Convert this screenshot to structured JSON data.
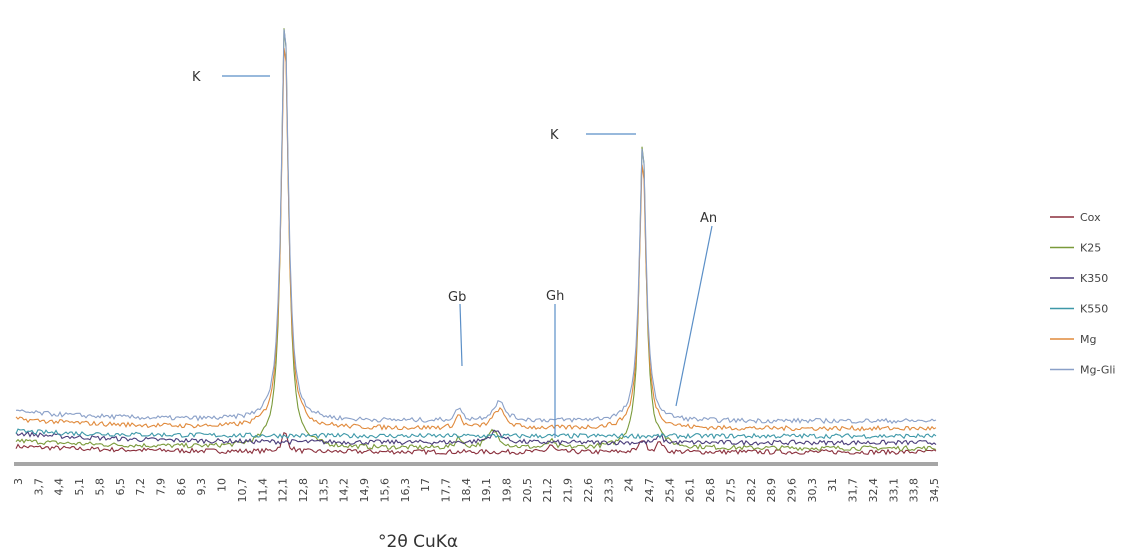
{
  "chart_data": {
    "type": "line",
    "title": "",
    "xlabel": "°2θ  CuKα",
    "ylabel": "",
    "grid": false,
    "legend_position": "right",
    "xlim": [
      3,
      35
    ],
    "x_tick_labels": [
      "3",
      "3,7",
      "4,4",
      "5,1",
      "5,8",
      "6,5",
      "7,2",
      "7,9",
      "8,6",
      "9,3",
      "10",
      "10,7",
      "11,4",
      "12,1",
      "12,8",
      "13,5",
      "14,2",
      "14,9",
      "15,6",
      "16,3",
      "17",
      "17,7",
      "18,4",
      "19,1",
      "19,8",
      "20,5",
      "21,2",
      "21,9",
      "22,6",
      "23,3",
      "24",
      "24,7",
      "25,4",
      "26,1",
      "26,8",
      "27,5",
      "28,2",
      "28,9",
      "29,6",
      "30,3",
      "31",
      "31,7",
      "32,4",
      "33,1",
      "33,8",
      "34,5"
    ],
    "series": [
      {
        "name": "Cox",
        "color": "#8b2f3c",
        "baseline": 0.0,
        "tail": 0.06,
        "peaks": [
          [
            12.35,
            0.2,
            0.12
          ],
          [
            21.6,
            0.08,
            0.1
          ],
          [
            24.8,
            0.14,
            0.12
          ],
          [
            25.4,
            0.12,
            0.1
          ]
        ]
      },
      {
        "name": "K25",
        "color": "#7a9a3a",
        "baseline": 0.04,
        "tail": 0.08,
        "peaks": [
          [
            12.35,
            4.6,
            0.15
          ],
          [
            18.4,
            0.12,
            0.1
          ],
          [
            19.6,
            0.18,
            0.25
          ],
          [
            21.6,
            0.08,
            0.1
          ],
          [
            24.8,
            3.3,
            0.14
          ],
          [
            25.4,
            0.06,
            0.1
          ]
        ]
      },
      {
        "name": "K350",
        "color": "#4a3c7a",
        "baseline": 0.1,
        "tail": 0.1,
        "peaks": [
          [
            19.7,
            0.12,
            0.25
          ],
          [
            25.4,
            0.08,
            0.1
          ]
        ]
      },
      {
        "name": "K550",
        "color": "#3d98a8",
        "baseline": 0.17,
        "tail": 0.05,
        "peaks": []
      },
      {
        "name": "Mg",
        "color": "#e08a3c",
        "baseline": 0.25,
        "tail": 0.1,
        "peaks": [
          [
            12.35,
            4.2,
            0.15
          ],
          [
            18.4,
            0.14,
            0.12
          ],
          [
            19.8,
            0.2,
            0.25
          ],
          [
            24.8,
            2.9,
            0.14
          ]
        ]
      },
      {
        "name": "Mg-Gli",
        "color": "#8aa0c8",
        "baseline": 0.33,
        "tail": 0.1,
        "peaks": [
          [
            12.35,
            4.3,
            0.15
          ],
          [
            18.4,
            0.14,
            0.12
          ],
          [
            19.8,
            0.2,
            0.25
          ],
          [
            24.8,
            3.0,
            0.14
          ]
        ]
      }
    ],
    "annotations": [
      {
        "label": "K",
        "x": 12.3
      },
      {
        "label": "K",
        "x": 24.7
      },
      {
        "label": "Gb",
        "x": 18.4
      },
      {
        "label": "Gh",
        "x": 21.7
      },
      {
        "label": "An",
        "x": 25.5
      }
    ]
  }
}
